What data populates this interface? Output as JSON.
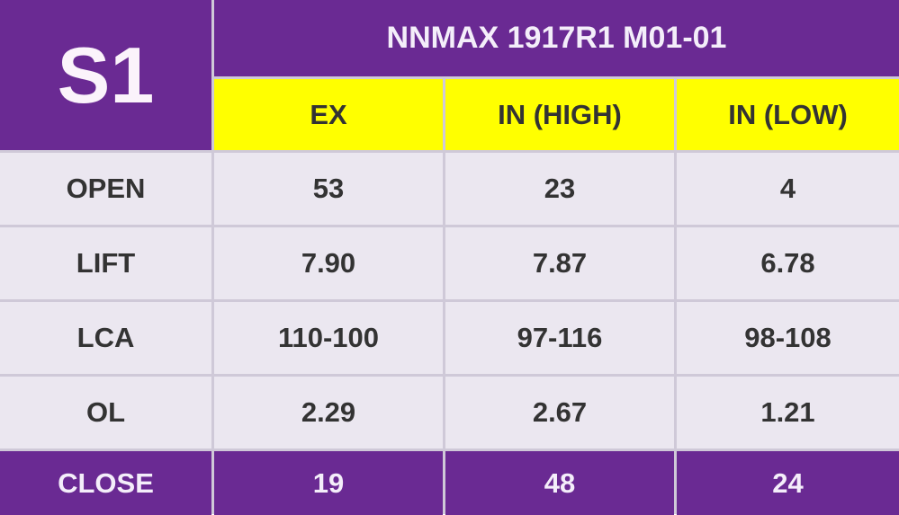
{
  "corner": "S1",
  "title": "NNMAX 1917R1 M01-01",
  "columns": [
    "EX",
    "IN (HIGH)",
    "IN (LOW)"
  ],
  "rows": [
    [
      "OPEN",
      "53",
      "23",
      "4"
    ],
    [
      "LIFT",
      "7.90",
      "7.87",
      "6.78"
    ],
    [
      "LCA",
      "110-100",
      "97-116",
      "98-108"
    ],
    [
      "OL",
      "2.29",
      "2.67",
      "1.21"
    ],
    [
      "CLOSE",
      "19",
      "48",
      "24"
    ]
  ]
}
